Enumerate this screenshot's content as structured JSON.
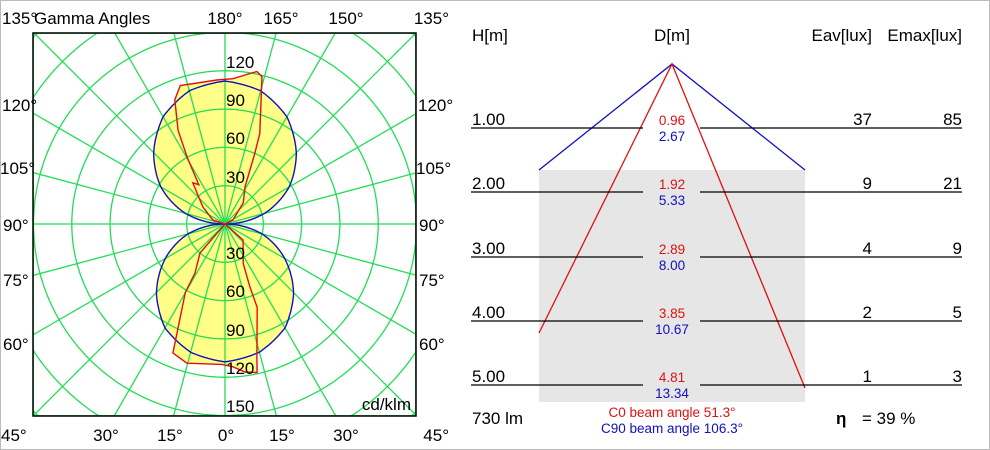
{
  "colors": {
    "grid": "#22dd55",
    "fill": "#ffff88",
    "c0": "#e01010",
    "c90": "#1010c0",
    "cone_bg": "#e6e6e6"
  },
  "polar": {
    "title": "Gamma Angles",
    "unit": "cd/klm",
    "top_labels": [
      "135°",
      "180°",
      "165°",
      "150°",
      "135°"
    ],
    "side_labels": [
      "120°",
      "105°",
      "90°",
      "75°",
      "60°"
    ],
    "bottom_labels": [
      "45°",
      "30°",
      "15°",
      "0°",
      "15°",
      "30°",
      "45°"
    ],
    "radial_labels_up": [
      "120",
      "90",
      "60",
      "30"
    ],
    "radial_labels_down": [
      "30",
      "60",
      "90",
      "120",
      "150"
    ],
    "c0_curve": [
      [
        -176.8,
        113
      ],
      [
        -162.1,
        114
      ],
      [
        -158,
        105
      ],
      [
        -153.4,
        82
      ],
      [
        -150.4,
        60
      ],
      [
        -146.3,
        37
      ],
      [
        -142,
        41
      ],
      [
        -127.7,
        22
      ],
      [
        -108,
        10
      ],
      [
        -90,
        0
      ],
      [
        -40.8,
        30
      ],
      [
        -31.5,
        45
      ],
      [
        -30.1,
        62
      ],
      [
        -23.8,
        93
      ],
      [
        -22,
        109
      ],
      [
        -15.3,
        113
      ],
      [
        -1.2,
        110
      ],
      [
        3.2,
        112
      ],
      [
        7.7,
        117
      ],
      [
        12.2,
        119
      ],
      [
        13.5,
        107
      ],
      [
        21.1,
        70
      ],
      [
        21.6,
        53
      ],
      [
        24.8,
        34
      ],
      [
        48.4,
        19
      ],
      [
        90,
        0
      ],
      [
        116.6,
        7
      ],
      [
        139.4,
        22
      ],
      [
        151.6,
        33
      ],
      [
        157.1,
        60
      ],
      [
        159,
        76
      ],
      [
        165.9,
        119
      ],
      [
        168.2,
        122
      ],
      [
        176.9,
        114
      ]
    ],
    "c90_curve": {
      "gamma": [
        0,
        15,
        30,
        45,
        60,
        75,
        90,
        105,
        120,
        135,
        150,
        165,
        180
      ],
      "intensity": [
        108,
        104,
        94,
        76,
        54,
        30,
        0,
        32,
        58,
        79,
        97,
        108,
        112
      ]
    }
  },
  "cone": {
    "headers": {
      "h": "H[m]",
      "d": "D[m]",
      "eav": "Eav[lux]",
      "emax": "Emax[lux]"
    },
    "rows": [
      {
        "h": "1.00",
        "d_c0": "0.96",
        "d_c90": "2.67",
        "eav": "37",
        "emax": "85"
      },
      {
        "h": "2.00",
        "d_c0": "1.92",
        "d_c90": "5.33",
        "eav": "9",
        "emax": "21"
      },
      {
        "h": "3.00",
        "d_c0": "2.89",
        "d_c90": "8.00",
        "eav": "4",
        "emax": "9"
      },
      {
        "h": "4.00",
        "d_c0": "3.85",
        "d_c90": "10.67",
        "eav": "2",
        "emax": "5"
      },
      {
        "h": "5.00",
        "d_c0": "4.81",
        "d_c90": "13.34",
        "eav": "1",
        "emax": "3"
      }
    ],
    "flux": "730 lm",
    "c0_beam": "C0  beam angle 51.3°",
    "c90_beam": "C90 beam angle 106.3°",
    "eta_symbol": "η",
    "eta_value": "= 39 %"
  }
}
